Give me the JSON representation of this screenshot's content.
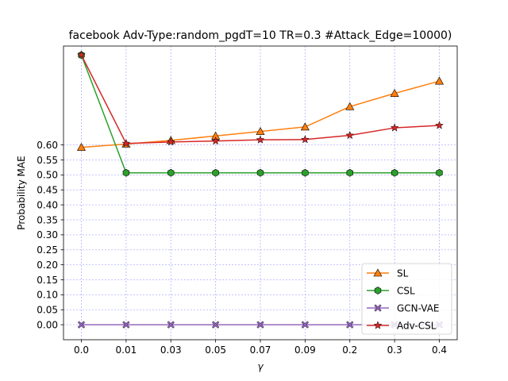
{
  "chart_data": {
    "type": "line",
    "title": "facebook Adv-Type:random_pgdT=10 TR=0.3 #Attack_Edge=10000)",
    "xlabel": "γ",
    "ylabel": "Probability MAE",
    "categories": [
      "0.0",
      "0.01",
      "0.03",
      "0.05",
      "0.07",
      "0.09",
      "0.2",
      "0.3",
      "0.4"
    ],
    "yticks": [
      "0.00",
      "0.05",
      "0.10",
      "0.15",
      "0.20",
      "0.25",
      "0.30",
      "0.35",
      "0.40",
      "0.45",
      "0.50",
      "0.55",
      "0.60"
    ],
    "ylim": [
      -0.05,
      0.93
    ],
    "grid": true,
    "legend_position": "lower-right",
    "series": [
      {
        "name": "SL",
        "color": "#ff7f0e",
        "marker": "triangle",
        "values": [
          0.592,
          0.603,
          0.615,
          0.63,
          0.645,
          0.66,
          0.728,
          0.772,
          0.813
        ]
      },
      {
        "name": "CSL",
        "color": "#2ca02c",
        "marker": "hexagon",
        "values": [
          0.9,
          0.507,
          0.507,
          0.507,
          0.507,
          0.507,
          0.507,
          0.507,
          0.507
        ]
      },
      {
        "name": "GCN-VAE",
        "color": "#9467bd",
        "marker": "x",
        "values": [
          0.0,
          0.0,
          0.0,
          0.0,
          0.0,
          0.0,
          0.0,
          0.0,
          0.0
        ]
      },
      {
        "name": "Adv-CSL",
        "color": "#d62728",
        "marker": "star",
        "values": [
          0.9,
          0.605,
          0.61,
          0.613,
          0.617,
          0.618,
          0.632,
          0.657,
          0.665
        ]
      }
    ]
  }
}
